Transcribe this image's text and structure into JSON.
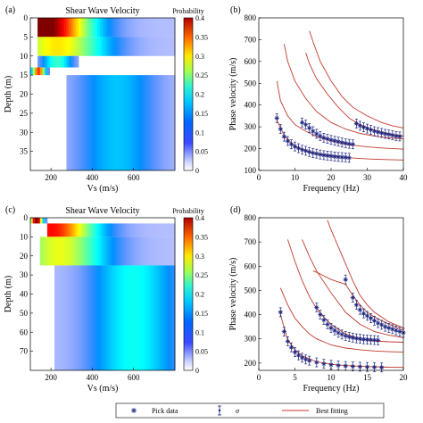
{
  "panel_labels": [
    "(a)",
    "(b)",
    "(c)",
    "(d)"
  ],
  "legend": {
    "pick_label": "Pick data",
    "sigma_label": "σ",
    "fit_label": "Best fitting",
    "colors": {
      "pick": "#1a237e",
      "fit": "#c0392b"
    }
  },
  "colorbar": {
    "title": "Probability",
    "range": [
      0,
      0.4
    ],
    "ticks": [
      "0.4",
      "0.35",
      "0.3",
      "0.25",
      "0.2",
      "0.15",
      "0.1",
      "0.05",
      "0"
    ],
    "colormap": "jet"
  },
  "chart_data": [
    {
      "id": "a",
      "type": "heatmap",
      "title": "Shear Wave Velocity",
      "xlabel": "Vs (m/s)",
      "ylabel": "Depth (m)",
      "xlim": [
        100,
        800
      ],
      "ylim": [
        0,
        40
      ],
      "xticks": [
        "200",
        "400",
        "600"
      ],
      "yticks": [
        "0",
        "5",
        "10",
        "15",
        "20",
        "25",
        "30",
        "35"
      ],
      "ytick_values": [
        0,
        5,
        10,
        15,
        20,
        25,
        30,
        35
      ],
      "xtick_values": [
        200,
        400,
        600
      ],
      "layers": [
        {
          "top": 0,
          "bottom": 5,
          "vmin": 140,
          "vmax": 800,
          "peak": 160,
          "peak_prob": 0.4
        },
        {
          "top": 5,
          "bottom": 10,
          "vmin": 130,
          "vmax": 800,
          "peak": 230,
          "peak_prob": 0.22
        },
        {
          "top": 10,
          "bottom": 13,
          "vmin": 130,
          "vmax": 330,
          "peak": 230,
          "peak_prob": 0.12
        },
        {
          "top": 13,
          "bottom": 15,
          "vmin": 100,
          "vmax": 190,
          "peak": 140,
          "peak_prob": 0.3
        },
        {
          "top": 15,
          "bottom": 40,
          "vmin": 280,
          "vmax": 800,
          "peak": 520,
          "peak_prob": 0.07
        }
      ]
    },
    {
      "id": "b",
      "type": "scatter",
      "xlabel": "Frequency (Hz)",
      "ylabel": "Phase velocity (m/s)",
      "xlim": [
        0,
        40
      ],
      "ylim": [
        100,
        800
      ],
      "xticks": [
        "0",
        "10",
        "20",
        "30",
        "40"
      ],
      "xtick_values": [
        0,
        10,
        20,
        30,
        40
      ],
      "yticks": [
        "100",
        "200",
        "300",
        "400",
        "500",
        "600",
        "700",
        "800"
      ],
      "ytick_values": [
        100,
        200,
        300,
        400,
        500,
        600,
        700,
        800
      ],
      "picks": [
        {
          "x": [
            5,
            6,
            7,
            8,
            9,
            10,
            11,
            12,
            13,
            14,
            15,
            16,
            17,
            18,
            19,
            20,
            21,
            22,
            23,
            24,
            25
          ],
          "y": [
            340,
            290,
            255,
            235,
            220,
            210,
            202,
            195,
            190,
            185,
            180,
            177,
            173,
            170,
            168,
            166,
            164,
            162,
            161,
            160,
            158
          ]
        },
        {
          "x": [
            12,
            13,
            14,
            15,
            16,
            17,
            18,
            19,
            20,
            21,
            22,
            23,
            24,
            25,
            26
          ],
          "y": [
            320,
            310,
            295,
            280,
            268,
            258,
            250,
            245,
            240,
            236,
            232,
            228,
            225,
            222,
            220
          ]
        },
        {
          "x": [
            27,
            28,
            29,
            30,
            31,
            32,
            33,
            34,
            35,
            36,
            37,
            38,
            39
          ],
          "y": [
            315,
            305,
            298,
            292,
            286,
            280,
            276,
            272,
            268,
            265,
            262,
            258,
            256
          ]
        }
      ],
      "fits": [
        {
          "x": [
            5,
            7,
            10,
            13,
            16,
            20,
            25,
            30,
            35,
            40
          ],
          "y": [
            330,
            260,
            210,
            190,
            178,
            167,
            158,
            153,
            150,
            148
          ]
        },
        {
          "x": [
            5,
            6,
            8,
            10,
            13,
            16,
            20,
            25,
            30,
            35,
            40
          ],
          "y": [
            510,
            420,
            350,
            310,
            280,
            255,
            235,
            218,
            208,
            202,
            198
          ]
        },
        {
          "x": [
            7,
            8,
            10,
            13,
            16,
            20,
            24,
            28,
            32,
            36,
            40
          ],
          "y": [
            680,
            600,
            510,
            430,
            370,
            320,
            290,
            270,
            258,
            250,
            245
          ]
        },
        {
          "x": [
            13,
            14,
            16,
            19,
            22,
            25,
            28,
            31,
            34,
            37,
            40
          ],
          "y": [
            640,
            590,
            520,
            450,
            390,
            340,
            310,
            290,
            275,
            265,
            258
          ]
        },
        {
          "x": [
            14,
            15,
            17,
            20,
            23,
            26,
            30,
            34,
            37,
            40
          ],
          "y": [
            740,
            690,
            600,
            510,
            440,
            390,
            350,
            320,
            305,
            295
          ]
        }
      ]
    },
    {
      "id": "c",
      "type": "heatmap",
      "title": "Shear Wave Velocity",
      "xlabel": "Vs (m/s)",
      "ylabel": "Depth (m)",
      "xlim": [
        100,
        800
      ],
      "ylim": [
        0,
        80
      ],
      "xticks": [
        "200",
        "400",
        "600"
      ],
      "xtick_values": [
        200,
        400,
        600
      ],
      "yticks": [
        "0",
        "10",
        "20",
        "30",
        "40",
        "50",
        "60",
        "70"
      ],
      "ytick_values": [
        0,
        10,
        20,
        30,
        40,
        50,
        60,
        70
      ],
      "layers": [
        {
          "top": 0,
          "bottom": 3,
          "vmin": 100,
          "vmax": 180,
          "peak": 130,
          "peak_prob": 0.4
        },
        {
          "top": 3,
          "bottom": 10,
          "vmin": 180,
          "vmax": 800,
          "peak": 200,
          "peak_prob": 0.32
        },
        {
          "top": 10,
          "bottom": 25,
          "vmin": 150,
          "vmax": 800,
          "peak": 240,
          "peak_prob": 0.2
        },
        {
          "top": 25,
          "bottom": 80,
          "vmin": 220,
          "vmax": 800,
          "peak": 600,
          "peak_prob": 0.1
        }
      ]
    },
    {
      "id": "d",
      "type": "scatter",
      "xlabel": "Frequency (Hz)",
      "ylabel": "Phase velocity (m/s)",
      "xlim": [
        0,
        20
      ],
      "ylim": [
        170,
        800
      ],
      "xticks": [
        "0",
        "5",
        "10",
        "15",
        "20"
      ],
      "xtick_values": [
        0,
        5,
        10,
        15,
        20
      ],
      "yticks": [
        "200",
        "300",
        "400",
        "500",
        "600",
        "700",
        "800"
      ],
      "ytick_values": [
        200,
        300,
        400,
        500,
        600,
        700,
        800
      ],
      "picks": [
        {
          "x": [
            3,
            3.5,
            4,
            4.5,
            5,
            5.5,
            6,
            6.5,
            7,
            8,
            9,
            10,
            11,
            12,
            13,
            14,
            15,
            16,
            17
          ],
          "y": [
            410,
            330,
            290,
            265,
            245,
            232,
            222,
            215,
            210,
            203,
            197,
            193,
            190,
            188,
            186,
            185,
            184,
            183,
            182
          ]
        },
        {
          "x": [
            8,
            8.5,
            9,
            9.5,
            10,
            10.5,
            11,
            11.5,
            12,
            12.5,
            13,
            13.5,
            14,
            14.5,
            15,
            15.5,
            16,
            16.5
          ],
          "y": [
            430,
            400,
            378,
            360,
            345,
            335,
            325,
            318,
            312,
            308,
            305,
            302,
            300,
            298,
            297,
            296,
            295,
            294
          ]
        },
        {
          "x": [
            12,
            13,
            13.5,
            14,
            14.5,
            15,
            15.5,
            16,
            16.5,
            17,
            17.5,
            18,
            18.5,
            19,
            19.5,
            20
          ],
          "y": [
            545,
            470,
            440,
            420,
            405,
            395,
            385,
            375,
            365,
            358,
            350,
            345,
            340,
            335,
            330,
            325
          ]
        }
      ],
      "fits": [
        {
          "x": [
            3,
            4,
            5,
            6,
            8,
            10,
            12,
            14,
            16,
            18,
            20
          ],
          "y": [
            400,
            295,
            255,
            230,
            205,
            195,
            190,
            187,
            185,
            183,
            182
          ]
        },
        {
          "x": [
            3,
            4,
            5,
            6,
            7,
            8,
            10,
            12,
            14,
            16,
            18,
            20
          ],
          "y": [
            510,
            440,
            385,
            350,
            320,
            300,
            275,
            262,
            255,
            250,
            247,
            245
          ]
        },
        {
          "x": [
            4,
            5,
            6,
            7,
            8,
            9,
            10,
            12,
            14,
            16,
            18,
            20
          ],
          "y": [
            710,
            620,
            540,
            475,
            425,
            390,
            360,
            320,
            300,
            292,
            288,
            286
          ]
        },
        {
          "x": [
            6,
            7,
            8,
            10,
            12,
            14,
            16,
            18,
            20
          ],
          "y": [
            710,
            640,
            580,
            490,
            410,
            360,
            330,
            315,
            305
          ]
        },
        {
          "x": [
            7.5,
            8,
            9,
            10,
            11,
            12,
            13,
            14,
            15,
            16,
            18,
            20
          ],
          "y": [
            580,
            575,
            560,
            545,
            535,
            525,
            480,
            440,
            410,
            390,
            360,
            335
          ]
        },
        {
          "x": [
            9.5,
            10,
            11,
            12,
            13,
            14,
            15,
            16,
            18,
            20
          ],
          "y": [
            790,
            750,
            680,
            610,
            540,
            480,
            440,
            410,
            370,
            345
          ]
        }
      ]
    }
  ]
}
